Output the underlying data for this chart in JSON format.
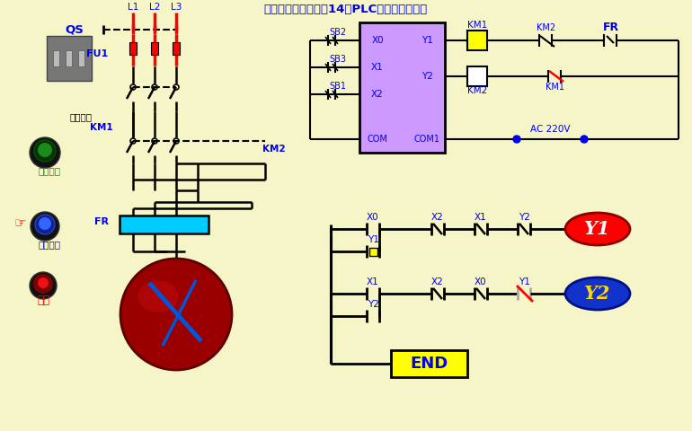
{
  "bg_color": "#F5F5C8",
  "blue": "#0000EE",
  "red": "#FF0000",
  "black": "#000000",
  "cyan": "#00CCFF",
  "plc_color": "#CC99FF",
  "yellow": "#FFFF00",
  "green_btn": "#228B22",
  "dark_red": "#8B0000",
  "gray": "#888888",
  "white": "#FFFFFF",
  "title": "电工必备电气原理图14：PLC正反转控制原理",
  "labels": {
    "QS": "QS",
    "FU1": "FU1",
    "KM1": "KM1",
    "KM2": "KM2",
    "FR": "FR",
    "L1": "L1",
    "L2": "L2",
    "L3": "L3",
    "power_switch": "电源开关",
    "forward": "正向启动",
    "reverse": "反向启动",
    "stop": "停止",
    "SB2": "SB2",
    "SB3": "SB3",
    "SB1": "SB1",
    "X0": "X0",
    "X1": "X1",
    "X2": "X2",
    "Y1": "Y1",
    "Y2": "Y2",
    "COM": "COM",
    "COM1": "COM1",
    "AC220V": "AC 220V",
    "END": "END"
  }
}
